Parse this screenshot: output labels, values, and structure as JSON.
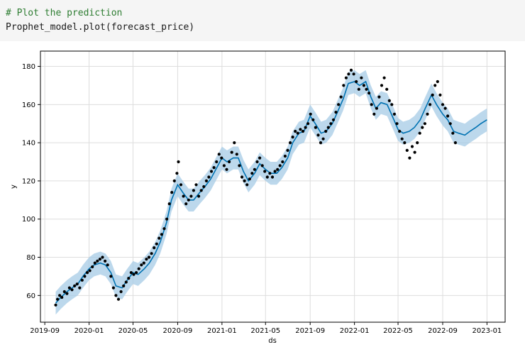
{
  "notebook": {
    "comment_line": "# Plot the prediction",
    "code_line": "Prophet_model.plot(forecast_price)"
  },
  "chart_data": {
    "type": "line",
    "title": "",
    "xlabel": "ds",
    "ylabel": "y",
    "xlim": [
      "2019-08-20",
      "2023-02-20"
    ],
    "ylim": [
      46,
      188
    ],
    "grid": true,
    "x_ticks": [
      "2019-09",
      "2020-01",
      "2020-05",
      "2020-09",
      "2021-01",
      "2021-05",
      "2021-09",
      "2022-01",
      "2022-05",
      "2022-09",
      "2023-01"
    ],
    "y_ticks": [
      60,
      80,
      100,
      120,
      140,
      160,
      180
    ],
    "colors": {
      "observed": "#000000",
      "forecast_line": "#0072B2",
      "uncertainty_band": "#a6cbe6",
      "grid": "#dddddd"
    },
    "forecast": [
      [
        "2019-10-01",
        56
      ],
      [
        "2019-10-15",
        59
      ],
      [
        "2019-11-01",
        62
      ],
      [
        "2019-11-15",
        64
      ],
      [
        "2019-12-01",
        66
      ],
      [
        "2019-12-15",
        70
      ],
      [
        "2020-01-01",
        74
      ],
      [
        "2020-01-15",
        76
      ],
      [
        "2020-02-01",
        77
      ],
      [
        "2020-02-15",
        76
      ],
      [
        "2020-03-01",
        72
      ],
      [
        "2020-03-15",
        65
      ],
      [
        "2020-04-01",
        64
      ],
      [
        "2020-04-15",
        68
      ],
      [
        "2020-05-01",
        72
      ],
      [
        "2020-05-15",
        71
      ],
      [
        "2020-06-01",
        74
      ],
      [
        "2020-06-15",
        77
      ],
      [
        "2020-07-01",
        82
      ],
      [
        "2020-07-15",
        88
      ],
      [
        "2020-08-01",
        98
      ],
      [
        "2020-08-15",
        110
      ],
      [
        "2020-09-01",
        118
      ],
      [
        "2020-09-15",
        114
      ],
      [
        "2020-10-01",
        110
      ],
      [
        "2020-10-15",
        110
      ],
      [
        "2020-11-01",
        114
      ],
      [
        "2020-11-15",
        117
      ],
      [
        "2020-12-01",
        121
      ],
      [
        "2020-12-15",
        126
      ],
      [
        "2021-01-01",
        132
      ],
      [
        "2021-01-15",
        130
      ],
      [
        "2021-02-01",
        132
      ],
      [
        "2021-02-15",
        132
      ],
      [
        "2021-03-01",
        125
      ],
      [
        "2021-03-15",
        120
      ],
      [
        "2021-04-01",
        124
      ],
      [
        "2021-04-15",
        129
      ],
      [
        "2021-05-01",
        126
      ],
      [
        "2021-05-15",
        124
      ],
      [
        "2021-06-01",
        124
      ],
      [
        "2021-06-15",
        127
      ],
      [
        "2021-07-01",
        132
      ],
      [
        "2021-07-15",
        140
      ],
      [
        "2021-08-01",
        145
      ],
      [
        "2021-08-15",
        146
      ],
      [
        "2021-09-01",
        154
      ],
      [
        "2021-09-15",
        150
      ],
      [
        "2021-10-01",
        145
      ],
      [
        "2021-10-15",
        146
      ],
      [
        "2021-11-01",
        150
      ],
      [
        "2021-11-15",
        156
      ],
      [
        "2021-12-01",
        163
      ],
      [
        "2021-12-15",
        171
      ],
      [
        "2022-01-01",
        172
      ],
      [
        "2022-01-15",
        170
      ],
      [
        "2022-02-01",
        172
      ],
      [
        "2022-02-15",
        164
      ],
      [
        "2022-03-01",
        158
      ],
      [
        "2022-03-15",
        161
      ],
      [
        "2022-04-01",
        160
      ],
      [
        "2022-04-15",
        154
      ],
      [
        "2022-05-01",
        147
      ],
      [
        "2022-05-15",
        145
      ],
      [
        "2022-06-01",
        146
      ],
      [
        "2022-06-15",
        148
      ],
      [
        "2022-07-01",
        152
      ],
      [
        "2022-07-15",
        158
      ],
      [
        "2022-08-01",
        165
      ],
      [
        "2022-08-15",
        160
      ],
      [
        "2022-09-01",
        155
      ],
      [
        "2022-09-15",
        152
      ],
      [
        "2022-10-01",
        146
      ],
      [
        "2022-10-15",
        145
      ],
      [
        "2022-11-01",
        144
      ],
      [
        "2022-11-15",
        146
      ],
      [
        "2022-12-01",
        148
      ],
      [
        "2022-12-15",
        150
      ],
      [
        "2023-01-01",
        152
      ]
    ],
    "observed": [
      [
        "2019-10-01",
        55
      ],
      [
        "2019-10-06",
        58
      ],
      [
        "2019-10-12",
        60
      ],
      [
        "2019-10-18",
        59
      ],
      [
        "2019-10-25",
        62
      ],
      [
        "2019-11-01",
        61
      ],
      [
        "2019-11-08",
        64
      ],
      [
        "2019-11-15",
        63
      ],
      [
        "2019-11-22",
        65
      ],
      [
        "2019-11-29",
        66
      ],
      [
        "2019-12-06",
        64
      ],
      [
        "2019-12-13",
        68
      ],
      [
        "2019-12-20",
        70
      ],
      [
        "2019-12-27",
        72
      ],
      [
        "2020-01-03",
        73
      ],
      [
        "2020-01-10",
        75
      ],
      [
        "2020-01-17",
        77
      ],
      [
        "2020-01-24",
        78
      ],
      [
        "2020-01-31",
        79
      ],
      [
        "2020-02-07",
        80
      ],
      [
        "2020-02-14",
        78
      ],
      [
        "2020-02-21",
        76
      ],
      [
        "2020-03-01",
        70
      ],
      [
        "2020-03-08",
        64
      ],
      [
        "2020-03-15",
        60
      ],
      [
        "2020-03-22",
        58
      ],
      [
        "2020-03-29",
        62
      ],
      [
        "2020-04-05",
        65
      ],
      [
        "2020-04-12",
        67
      ],
      [
        "2020-04-19",
        69
      ],
      [
        "2020-04-26",
        72
      ],
      [
        "2020-05-03",
        71
      ],
      [
        "2020-05-10",
        72
      ],
      [
        "2020-05-17",
        74
      ],
      [
        "2020-05-24",
        76
      ],
      [
        "2020-05-31",
        77
      ],
      [
        "2020-06-07",
        79
      ],
      [
        "2020-06-14",
        80
      ],
      [
        "2020-06-21",
        82
      ],
      [
        "2020-06-28",
        85
      ],
      [
        "2020-07-05",
        87
      ],
      [
        "2020-07-12",
        90
      ],
      [
        "2020-07-19",
        92
      ],
      [
        "2020-07-26",
        95
      ],
      [
        "2020-08-02",
        100
      ],
      [
        "2020-08-09",
        108
      ],
      [
        "2020-08-16",
        114
      ],
      [
        "2020-08-23",
        120
      ],
      [
        "2020-08-30",
        124
      ],
      [
        "2020-09-03",
        130
      ],
      [
        "2020-09-10",
        118
      ],
      [
        "2020-09-17",
        112
      ],
      [
        "2020-09-24",
        108
      ],
      [
        "2020-10-01",
        110
      ],
      [
        "2020-10-08",
        112
      ],
      [
        "2020-10-15",
        115
      ],
      [
        "2020-10-22",
        118
      ],
      [
        "2020-10-29",
        112
      ],
      [
        "2020-11-05",
        115
      ],
      [
        "2020-11-12",
        117
      ],
      [
        "2020-11-19",
        120
      ],
      [
        "2020-11-26",
        122
      ],
      [
        "2020-12-03",
        125
      ],
      [
        "2020-12-10",
        127
      ],
      [
        "2020-12-17",
        130
      ],
      [
        "2020-12-24",
        134
      ],
      [
        "2020-12-31",
        132
      ],
      [
        "2021-01-07",
        128
      ],
      [
        "2021-01-14",
        126
      ],
      [
        "2021-01-21",
        130
      ],
      [
        "2021-01-28",
        135
      ],
      [
        "2021-02-04",
        140
      ],
      [
        "2021-02-11",
        134
      ],
      [
        "2021-02-18",
        128
      ],
      [
        "2021-02-25",
        122
      ],
      [
        "2021-03-04",
        120
      ],
      [
        "2021-03-11",
        118
      ],
      [
        "2021-03-18",
        121
      ],
      [
        "2021-03-25",
        124
      ],
      [
        "2021-04-01",
        126
      ],
      [
        "2021-04-08",
        130
      ],
      [
        "2021-04-15",
        132
      ],
      [
        "2021-04-22",
        128
      ],
      [
        "2021-04-29",
        125
      ],
      [
        "2021-05-06",
        122
      ],
      [
        "2021-05-13",
        124
      ],
      [
        "2021-05-20",
        122
      ],
      [
        "2021-05-27",
        125
      ],
      [
        "2021-06-03",
        126
      ],
      [
        "2021-06-10",
        128
      ],
      [
        "2021-06-17",
        130
      ],
      [
        "2021-06-24",
        133
      ],
      [
        "2021-07-01",
        136
      ],
      [
        "2021-07-08",
        140
      ],
      [
        "2021-07-15",
        143
      ],
      [
        "2021-07-22",
        146
      ],
      [
        "2021-07-29",
        145
      ],
      [
        "2021-08-05",
        147
      ],
      [
        "2021-08-12",
        146
      ],
      [
        "2021-08-19",
        148
      ],
      [
        "2021-08-26",
        150
      ],
      [
        "2021-09-02",
        155
      ],
      [
        "2021-09-09",
        152
      ],
      [
        "2021-09-16",
        148
      ],
      [
        "2021-09-23",
        144
      ],
      [
        "2021-09-30",
        140
      ],
      [
        "2021-10-07",
        142
      ],
      [
        "2021-10-14",
        146
      ],
      [
        "2021-10-21",
        148
      ],
      [
        "2021-10-28",
        150
      ],
      [
        "2021-11-04",
        152
      ],
      [
        "2021-11-11",
        156
      ],
      [
        "2021-11-18",
        160
      ],
      [
        "2021-11-25",
        164
      ],
      [
        "2021-12-02",
        170
      ],
      [
        "2021-12-09",
        174
      ],
      [
        "2021-12-16",
        176
      ],
      [
        "2021-12-23",
        178
      ],
      [
        "2021-12-30",
        176
      ],
      [
        "2022-01-06",
        172
      ],
      [
        "2022-01-13",
        168
      ],
      [
        "2022-01-20",
        174
      ],
      [
        "2022-01-27",
        170
      ],
      [
        "2022-02-03",
        168
      ],
      [
        "2022-02-10",
        166
      ],
      [
        "2022-02-17",
        160
      ],
      [
        "2022-02-24",
        155
      ],
      [
        "2022-03-03",
        158
      ],
      [
        "2022-03-10",
        164
      ],
      [
        "2022-03-17",
        170
      ],
      [
        "2022-03-24",
        174
      ],
      [
        "2022-03-31",
        168
      ],
      [
        "2022-04-07",
        162
      ],
      [
        "2022-04-14",
        160
      ],
      [
        "2022-04-21",
        155
      ],
      [
        "2022-04-28",
        150
      ],
      [
        "2022-05-05",
        146
      ],
      [
        "2022-05-12",
        142
      ],
      [
        "2022-05-19",
        140
      ],
      [
        "2022-05-26",
        136
      ],
      [
        "2022-06-02",
        132
      ],
      [
        "2022-06-09",
        138
      ],
      [
        "2022-06-16",
        135
      ],
      [
        "2022-06-23",
        140
      ],
      [
        "2022-06-30",
        145
      ],
      [
        "2022-07-07",
        148
      ],
      [
        "2022-07-14",
        150
      ],
      [
        "2022-07-21",
        155
      ],
      [
        "2022-07-28",
        160
      ],
      [
        "2022-08-04",
        165
      ],
      [
        "2022-08-11",
        170
      ],
      [
        "2022-08-18",
        172
      ],
      [
        "2022-08-25",
        165
      ],
      [
        "2022-09-01",
        160
      ],
      [
        "2022-09-08",
        158
      ],
      [
        "2022-09-15",
        154
      ],
      [
        "2022-09-22",
        150
      ],
      [
        "2022-09-29",
        145
      ],
      [
        "2022-10-06",
        140
      ]
    ]
  }
}
